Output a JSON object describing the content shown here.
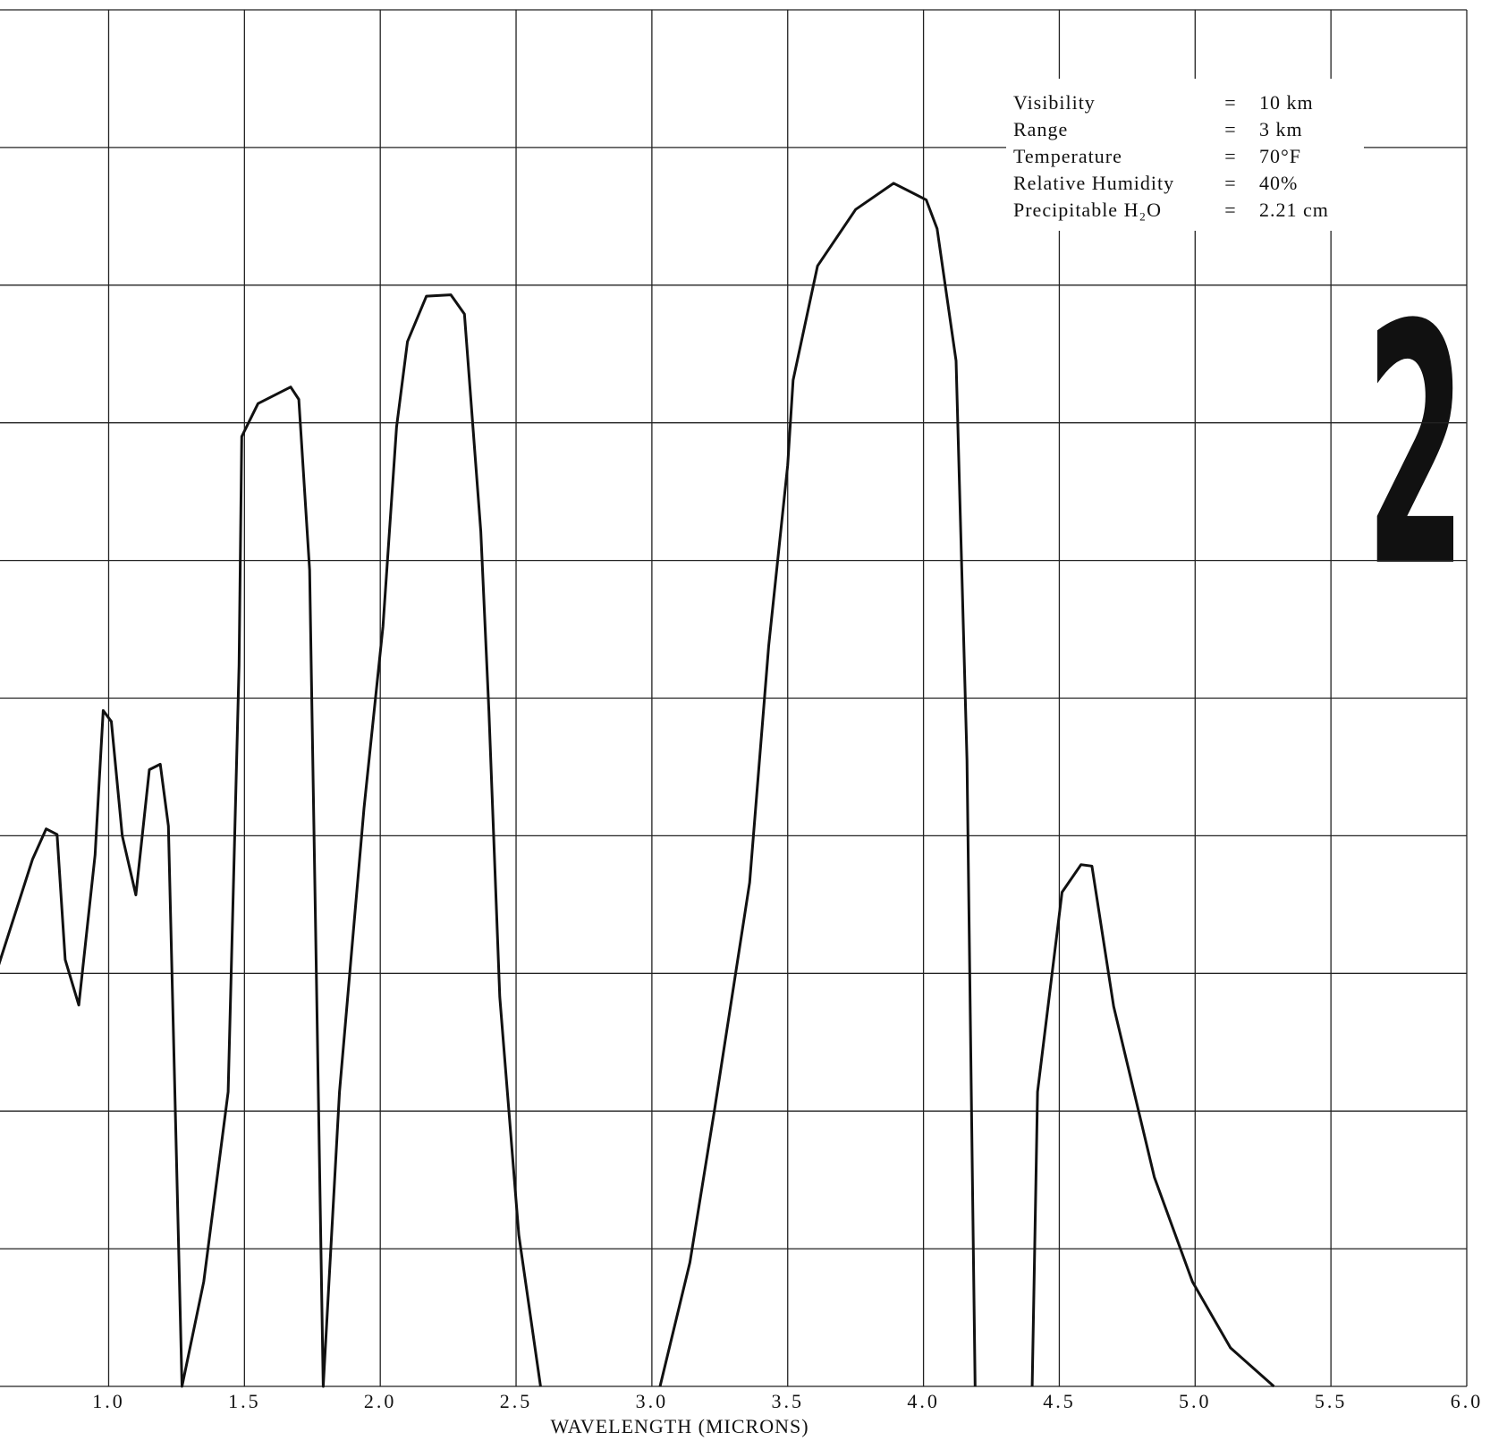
{
  "chart_data": {
    "type": "line",
    "x_label": "WAVELENGTH (MICRONS)",
    "page_number": "2",
    "annotations": [
      {
        "label": "Visibility",
        "sign": "=",
        "value": "10 km"
      },
      {
        "label": "Range",
        "sign": "=",
        "value": "3 km"
      },
      {
        "label": "Temperature",
        "sign": "=",
        "value": "70°F"
      },
      {
        "label": "Relative Humidity",
        "sign": "=",
        "value": "40%"
      },
      {
        "label": "Precipitable H₂O",
        "sign": "=",
        "value": "2.21 cm"
      }
    ],
    "xlim": [
      0.6,
      6.0
    ],
    "xticks": [
      {
        "value": 1,
        "label": "1.0"
      },
      1.5,
      {
        "value": 2,
        "label": "2.0"
      },
      2.5,
      {
        "value": 3,
        "label": "3.0"
      },
      3.5,
      {
        "value": 4,
        "label": "4.0"
      },
      4.5,
      {
        "value": 5,
        "label": "5.0"
      },
      5.5,
      {
        "value": 6,
        "label": "6.0"
      }
    ],
    "ylim": [
      0,
      100
    ],
    "yticks": [
      0,
      10,
      20,
      30,
      40,
      50,
      60,
      70,
      80,
      90,
      100
    ],
    "grid": true,
    "series": [
      {
        "color": "#111111",
        "x": [
          0.59,
          0.72,
          0.77,
          0.81,
          0.84,
          0.89,
          0.95,
          0.98,
          1.01,
          1.05,
          1.1,
          1.15,
          1.19,
          1.22,
          1.27,
          1.35,
          1.44,
          1.48,
          1.49,
          1.55,
          1.67,
          1.7,
          1.74,
          1.79,
          1.85,
          1.94,
          2.01,
          2.06,
          2.1,
          2.17,
          2.26,
          2.31,
          2.37,
          2.4,
          2.44,
          2.51,
          2.59,
          2.8,
          3.03,
          3.14,
          3.23,
          3.36,
          3.43,
          3.5,
          3.52,
          3.61,
          3.75,
          3.89,
          4.01,
          4.05,
          4.12,
          4.16,
          4.19,
          4.3,
          4.4,
          4.42,
          4.51,
          4.58,
          4.62,
          4.7,
          4.85,
          4.99,
          5.13,
          5.29
        ],
        "values": [
          30.3,
          38.3,
          40.5,
          40.1,
          31,
          27.7,
          38.6,
          49.1,
          48.3,
          40,
          35.7,
          44.8,
          45.2,
          40.7,
          0,
          7.6,
          21.4,
          52.4,
          69,
          71.4,
          72.6,
          71.7,
          59.3,
          0,
          21.4,
          42,
          55.2,
          69.7,
          75.9,
          79.2,
          79.3,
          77.9,
          62.1,
          49,
          28.3,
          11,
          0,
          null,
          0,
          9,
          20,
          36.6,
          53.8,
          66.9,
          73.1,
          81.4,
          85.5,
          87.4,
          86.2,
          84.1,
          74.5,
          45.5,
          0,
          null,
          0,
          21.4,
          35.9,
          37.9,
          37.8,
          27.6,
          15.2,
          7.6,
          2.8,
          0
        ]
      }
    ]
  }
}
